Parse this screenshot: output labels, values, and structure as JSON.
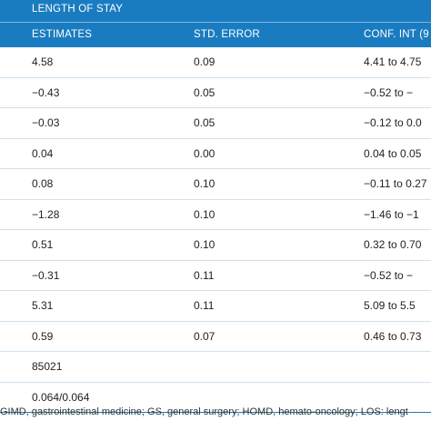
{
  "table": {
    "group_header": "LENGTH OF STAY",
    "columns": {
      "estimates": "ESTIMATES",
      "std_error": "STD. ERROR",
      "conf_int": "CONF. INT (9"
    },
    "rows": [
      {
        "estimate": "4.58",
        "std_error": "0.09",
        "conf_int": "4.41 to 4.75"
      },
      {
        "estimate": "−0.43",
        "std_error": "0.05",
        "conf_int": "−0.52 to −"
      },
      {
        "estimate": "−0.03",
        "std_error": "0.05",
        "conf_int": "−0.12 to 0.0"
      },
      {
        "estimate": "0.04",
        "std_error": "0.00",
        "conf_int": "0.04 to 0.05"
      },
      {
        "estimate": "0.08",
        "std_error": "0.10",
        "conf_int": "−0.11 to 0.27"
      },
      {
        "estimate": "−1.28",
        "std_error": "0.10",
        "conf_int": "−1.46 to −1"
      },
      {
        "estimate": "0.51",
        "std_error": "0.10",
        "conf_int": "0.32 to 0.70"
      },
      {
        "estimate": "−0.31",
        "std_error": "0.11",
        "conf_int": "−0.52 to −"
      },
      {
        "estimate": "5.31",
        "std_error": "0.11",
        "conf_int": "5.09 to 5.5"
      },
      {
        "estimate": "0.59",
        "std_error": "0.07",
        "conf_int": "0.46 to 0.73"
      },
      {
        "estimate": "85021",
        "std_error": "",
        "conf_int": ""
      },
      {
        "estimate": "0.064/0.064",
        "std_error": "",
        "conf_int": ""
      }
    ]
  },
  "footnote": "GIMD, gastrointestinal medicine; GS, general surgery; HOMD, hemato-oncology; LOS: lengt",
  "colors": {
    "header_bg": "#1a7cc0",
    "row_divider": "#cfe1ef"
  }
}
